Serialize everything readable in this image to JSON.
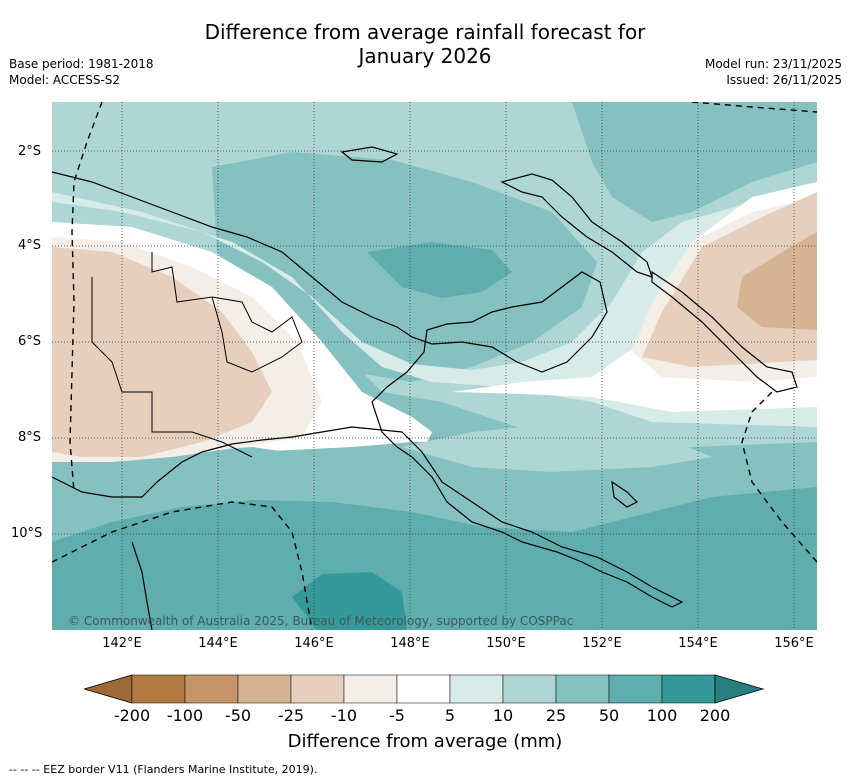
{
  "title_line1": "Difference from average rainfall forecast for",
  "title_line2": "January 2026",
  "meta_left": {
    "line1": "Base period: 1981-2018",
    "line2": "Model: ACCESS-S2"
  },
  "meta_right": {
    "line1": "Model run: 23/11/2025",
    "line2": "Issued: 26/11/2025"
  },
  "lat_labels": [
    "2°S",
    "4°S",
    "6°S",
    "8°S",
    "10°S"
  ],
  "lon_labels": [
    "142°E",
    "144°E",
    "146°E",
    "148°E",
    "150°E",
    "152°E",
    "154°E",
    "156°E"
  ],
  "copyright": "© Commonwealth of Australia 2025, Bureau of Meteorology, supported by COSPPac",
  "colorbar": {
    "title": "Difference from average (mm)",
    "ticks": [
      "-200",
      "-100",
      "-50",
      "-25",
      "-10",
      "-5",
      "5",
      "10",
      "25",
      "50",
      "100",
      "200"
    ],
    "colors": [
      "#9c6a35",
      "#b07a42",
      "#c4956a",
      "#d6b393",
      "#e6d0bd",
      "#f3eee8",
      "#ffffff",
      "#d7ebe9",
      "#add6d5",
      "#84c1c0",
      "#5fadad",
      "#35999a",
      "#277f7f"
    ]
  },
  "footnote": "--  --  -- EEZ border V11 (Flanders Marine Institute, 2019)."
}
